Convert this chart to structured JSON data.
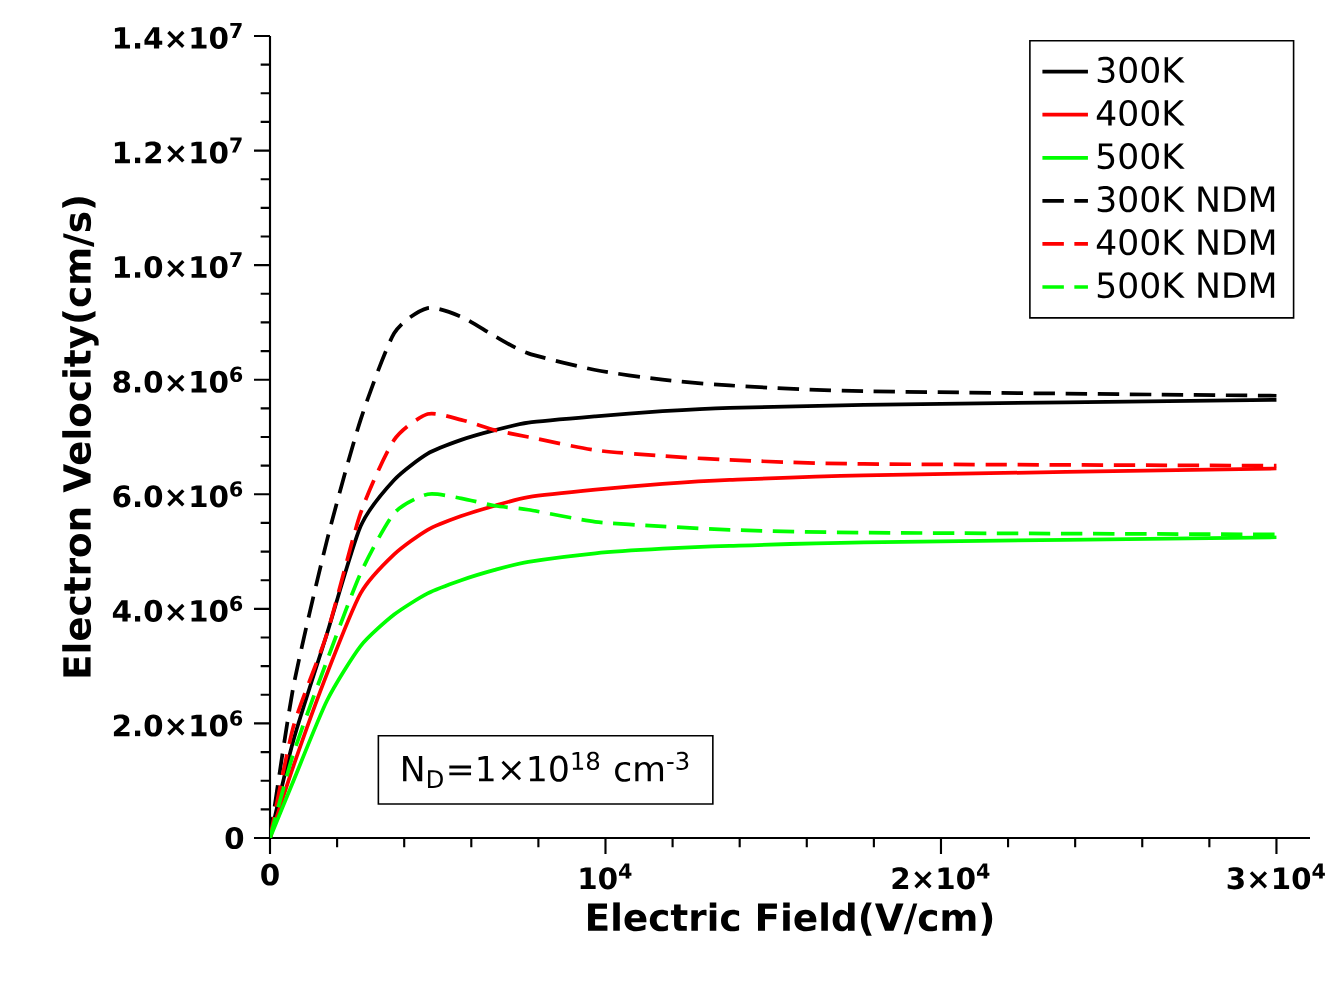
{
  "chart_data": {
    "type": "line",
    "xlabel": "Electric Field(V/cm)",
    "ylabel": "Electron Velocity(cm/s)",
    "xlim": [
      0,
      31000
    ],
    "ylim": [
      0,
      14000000
    ],
    "xticks": [
      0,
      {
        "value": 10000,
        "label": "10$^{4}$"
      },
      {
        "value": 20000,
        "label": "2×10$^{4}$"
      },
      {
        "value": 30000,
        "label": "3×10$^{4}$"
      }
    ],
    "yticks": [
      0,
      {
        "value": 2000000,
        "label": "2.0×10$^{6}$"
      },
      {
        "value": 4000000,
        "label": "4.0×10$^{6}$"
      },
      {
        "value": 6000000,
        "label": "6.0×10$^{6}$"
      },
      {
        "value": 8000000,
        "label": "8.0×10$^{6}$"
      },
      {
        "value": 10000000,
        "label": "1.0×10$^{7}$"
      },
      {
        "value": 12000000,
        "label": "1.2×10$^{7}$"
      },
      {
        "value": 14000000,
        "label": "1.4×10$^{7}$"
      }
    ],
    "x": [
      0,
      700,
      1700,
      2700,
      3700,
      4700,
      5700,
      6700,
      7700,
      9700,
      11700,
      13700,
      17700,
      30000
    ],
    "legend": "top right",
    "grid": false,
    "marker": "none",
    "annotations": [
      "N$_{D}$=1×10$^{18}$ cm$^{-3}$"
    ],
    "series": [
      {
        "name": "300K",
        "color": "#000000",
        "line_style": "solid",
        "values": [
          0,
          1710000,
          3570000,
          5440000,
          6250000,
          6710000,
          6950000,
          7120000,
          7250000,
          7360000,
          7450000,
          7510000,
          7560000,
          7650000
        ]
      },
      {
        "name": "400K",
        "color": "#ff0000",
        "line_style": "solid",
        "values": [
          0,
          1260000,
          2870000,
          4270000,
          4950000,
          5380000,
          5620000,
          5800000,
          5950000,
          6080000,
          6180000,
          6250000,
          6330000,
          6450000
        ]
      },
      {
        "name": "500K",
        "color": "#00ff00",
        "line_style": "solid",
        "values": [
          0,
          1000000,
          2400000,
          3350000,
          3900000,
          4270000,
          4500000,
          4680000,
          4820000,
          4970000,
          5050000,
          5100000,
          5160000,
          5250000
        ]
      },
      {
        "name": "300K NDM",
        "color": "#000000",
        "line_style": "dashed",
        "values": [
          0,
          2650000,
          5200000,
          7300000,
          8810000,
          9250000,
          9100000,
          8760000,
          8460000,
          8170000,
          8000000,
          7900000,
          7800000,
          7720000
        ]
      },
      {
        "name": "400K NDM",
        "color": "#ff0000",
        "line_style": "dashed",
        "values": [
          0,
          1950000,
          3570000,
          5670000,
          6950000,
          7400000,
          7300000,
          7120000,
          7000000,
          6770000,
          6670000,
          6600000,
          6530000,
          6500000
        ]
      },
      {
        "name": "500K NDM",
        "color": "#00ff00",
        "line_style": "dashed",
        "values": [
          0,
          1480000,
          3100000,
          4620000,
          5670000,
          6000000,
          5930000,
          5800000,
          5730000,
          5520000,
          5440000,
          5380000,
          5330000,
          5300000
        ]
      }
    ]
  }
}
